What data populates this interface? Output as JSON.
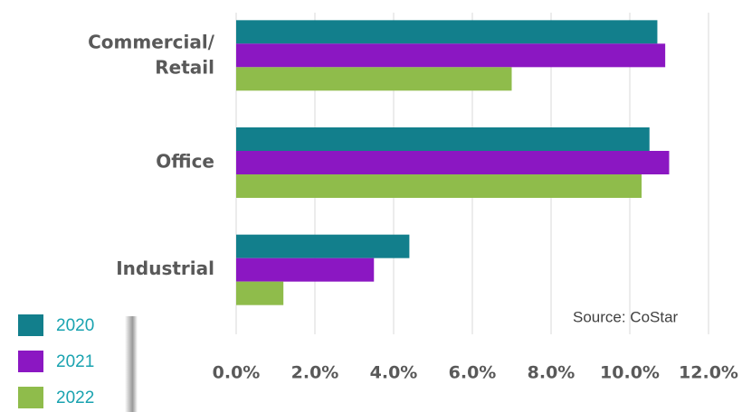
{
  "chart_data": {
    "type": "bar",
    "orientation": "horizontal",
    "categories": [
      "Commercial/\nRetail",
      "Office",
      "Industrial"
    ],
    "series": [
      {
        "name": "2020",
        "color": "#127f8c",
        "values": [
          10.7,
          10.5,
          4.4
        ]
      },
      {
        "name": "2021",
        "color": "#8b17c2",
        "values": [
          10.9,
          11.0,
          3.5
        ]
      },
      {
        "name": "2022",
        "color": "#8fbc4b",
        "values": [
          7.0,
          10.3,
          1.2
        ]
      }
    ],
    "xlim": [
      0,
      12
    ],
    "xticks": [
      {
        "value": 0,
        "label": "0.0%"
      },
      {
        "value": 2,
        "label": "2.0%"
      },
      {
        "value": 4,
        "label": "4.0%"
      },
      {
        "value": 6,
        "label": "6.0%"
      },
      {
        "value": 8,
        "label": "8.0%"
      },
      {
        "value": 10,
        "label": "10.0%"
      },
      {
        "value": 12,
        "label": "12.0%"
      }
    ],
    "grid": true,
    "legend": "bottom-left",
    "annotation": "Source: CoStar"
  }
}
